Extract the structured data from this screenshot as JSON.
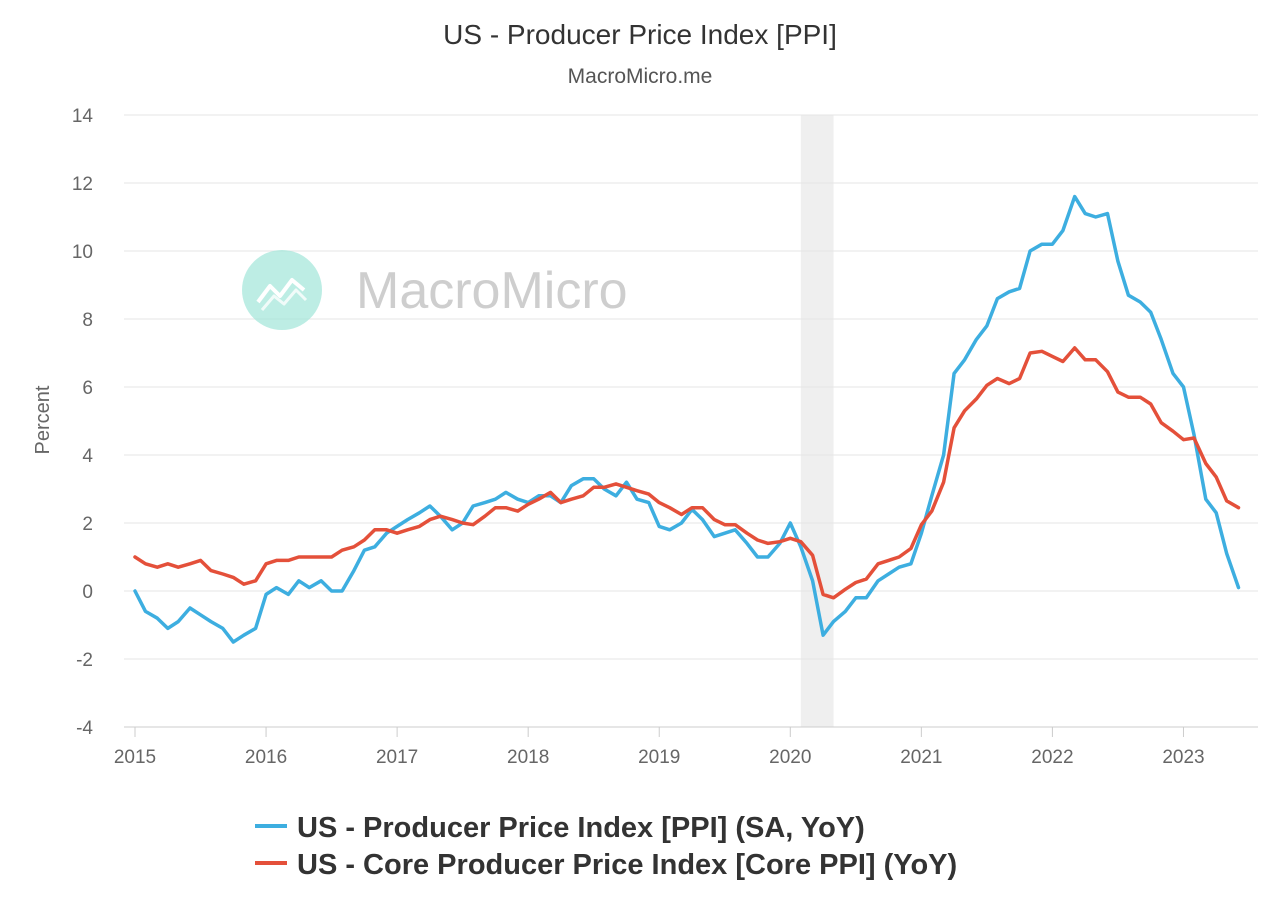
{
  "chart_data": {
    "type": "line",
    "title": "US - Producer Price Index [PPI]",
    "subtitle": "MacroMicro.me",
    "watermark": "MacroMicro",
    "xlabel": "",
    "ylabel": "Percent",
    "ylim": [
      -4,
      14
    ],
    "yticks": [
      -4,
      -2,
      0,
      2,
      4,
      6,
      8,
      10,
      12,
      14
    ],
    "ytick_labels": [
      "-4",
      "-2",
      "0",
      "2",
      "4",
      "6",
      "8",
      "10",
      "12",
      "14"
    ],
    "xlim": [
      2015.0,
      2023.5
    ],
    "xticks": [
      2015,
      2016,
      2017,
      2018,
      2019,
      2020,
      2021,
      2022,
      2023
    ],
    "xtick_labels": [
      "2015",
      "2016",
      "2017",
      "2018",
      "2019",
      "2020",
      "2021",
      "2022",
      "2023"
    ],
    "grid": true,
    "legend_position": "bottom",
    "recession_band": {
      "start": 2020.08,
      "end": 2020.33
    },
    "series": [
      {
        "name": "US - Producer Price Index [PPI] (SA, YoY)",
        "color": "#3daee0",
        "x": [
          2015.0,
          2015.08,
          2015.17,
          2015.25,
          2015.33,
          2015.42,
          2015.5,
          2015.58,
          2015.67,
          2015.75,
          2015.83,
          2015.92,
          2016.0,
          2016.08,
          2016.17,
          2016.25,
          2016.33,
          2016.42,
          2016.5,
          2016.58,
          2016.67,
          2016.75,
          2016.83,
          2016.92,
          2017.0,
          2017.08,
          2017.17,
          2017.25,
          2017.33,
          2017.42,
          2017.5,
          2017.58,
          2017.67,
          2017.75,
          2017.83,
          2017.92,
          2018.0,
          2018.08,
          2018.17,
          2018.25,
          2018.33,
          2018.42,
          2018.5,
          2018.58,
          2018.67,
          2018.75,
          2018.83,
          2018.92,
          2019.0,
          2019.08,
          2019.17,
          2019.25,
          2019.33,
          2019.42,
          2019.5,
          2019.58,
          2019.67,
          2019.75,
          2019.83,
          2019.92,
          2020.0,
          2020.08,
          2020.17,
          2020.25,
          2020.33,
          2020.42,
          2020.5,
          2020.58,
          2020.67,
          2020.75,
          2020.83,
          2020.92,
          2021.0,
          2021.08,
          2021.17,
          2021.25,
          2021.33,
          2021.42,
          2021.5,
          2021.58,
          2021.67,
          2021.75,
          2021.83,
          2021.92,
          2022.0,
          2022.08,
          2022.17,
          2022.25,
          2022.33,
          2022.42,
          2022.5,
          2022.58,
          2022.67,
          2022.75,
          2022.83,
          2022.92,
          2023.0,
          2023.08,
          2023.17,
          2023.25,
          2023.33,
          2023.42
        ],
        "values": [
          0.0,
          -0.6,
          -0.8,
          -1.1,
          -0.9,
          -0.5,
          -0.7,
          -0.9,
          -1.1,
          -1.5,
          -1.3,
          -1.1,
          -0.1,
          0.1,
          -0.1,
          0.3,
          0.1,
          0.3,
          0.0,
          0.0,
          0.6,
          1.2,
          1.3,
          1.7,
          1.9,
          2.1,
          2.3,
          2.5,
          2.2,
          1.8,
          2.0,
          2.5,
          2.6,
          2.7,
          2.9,
          2.7,
          2.6,
          2.8,
          2.8,
          2.6,
          3.1,
          3.3,
          3.3,
          3.0,
          2.8,
          3.2,
          2.7,
          2.6,
          1.9,
          1.8,
          2.0,
          2.4,
          2.1,
          1.6,
          1.7,
          1.8,
          1.4,
          1.0,
          1.0,
          1.4,
          2.0,
          1.3,
          0.3,
          -1.3,
          -0.9,
          -0.6,
          -0.2,
          -0.2,
          0.3,
          0.5,
          0.7,
          0.8,
          1.7,
          2.8,
          4.0,
          6.4,
          6.8,
          7.4,
          7.8,
          8.6,
          8.8,
          8.9,
          10.0,
          10.2,
          10.2,
          10.6,
          11.6,
          11.1,
          11.0,
          11.1,
          9.7,
          8.7,
          8.5,
          8.2,
          7.4,
          6.4,
          6.0,
          4.6,
          2.7,
          2.3,
          1.1,
          0.1
        ]
      },
      {
        "name": "US - Core Producer Price Index [Core PPI] (YoY)",
        "color": "#e4503a",
        "x": [
          2015.0,
          2015.08,
          2015.17,
          2015.25,
          2015.33,
          2015.42,
          2015.5,
          2015.58,
          2015.67,
          2015.75,
          2015.83,
          2015.92,
          2016.0,
          2016.08,
          2016.17,
          2016.25,
          2016.33,
          2016.42,
          2016.5,
          2016.58,
          2016.67,
          2016.75,
          2016.83,
          2016.92,
          2017.0,
          2017.08,
          2017.17,
          2017.25,
          2017.33,
          2017.42,
          2017.5,
          2017.58,
          2017.67,
          2017.75,
          2017.83,
          2017.92,
          2018.0,
          2018.08,
          2018.17,
          2018.25,
          2018.33,
          2018.42,
          2018.5,
          2018.58,
          2018.67,
          2018.75,
          2018.83,
          2018.92,
          2019.0,
          2019.08,
          2019.17,
          2019.25,
          2019.33,
          2019.42,
          2019.5,
          2019.58,
          2019.67,
          2019.75,
          2019.83,
          2019.92,
          2020.0,
          2020.08,
          2020.17,
          2020.25,
          2020.33,
          2020.42,
          2020.5,
          2020.58,
          2020.67,
          2020.75,
          2020.83,
          2020.92,
          2021.0,
          2021.08,
          2021.17,
          2021.25,
          2021.33,
          2021.42,
          2021.5,
          2021.58,
          2021.67,
          2021.75,
          2021.83,
          2021.92,
          2022.0,
          2022.08,
          2022.17,
          2022.25,
          2022.33,
          2022.42,
          2022.5,
          2022.58,
          2022.67,
          2022.75,
          2022.83,
          2022.92,
          2023.0,
          2023.08,
          2023.17,
          2023.25,
          2023.33,
          2023.42
        ],
        "values": [
          1.0,
          0.8,
          0.7,
          0.8,
          0.7,
          0.8,
          0.9,
          0.6,
          0.5,
          0.4,
          0.2,
          0.3,
          0.8,
          0.9,
          0.9,
          1.0,
          1.0,
          1.0,
          1.0,
          1.2,
          1.3,
          1.5,
          1.8,
          1.8,
          1.7,
          1.8,
          1.9,
          2.1,
          2.2,
          2.1,
          2.0,
          1.95,
          2.2,
          2.45,
          2.45,
          2.35,
          2.55,
          2.7,
          2.9,
          2.6,
          2.7,
          2.8,
          3.05,
          3.05,
          3.15,
          3.05,
          2.95,
          2.85,
          2.6,
          2.45,
          2.25,
          2.45,
          2.45,
          2.1,
          1.95,
          1.95,
          1.7,
          1.5,
          1.4,
          1.45,
          1.55,
          1.45,
          1.05,
          -0.1,
          -0.2,
          0.05,
          0.25,
          0.35,
          0.8,
          0.9,
          1.0,
          1.25,
          1.95,
          2.35,
          3.2,
          4.8,
          5.3,
          5.65,
          6.05,
          6.25,
          6.1,
          6.25,
          7.0,
          7.05,
          6.9,
          6.75,
          7.15,
          6.8,
          6.8,
          6.45,
          5.85,
          5.7,
          5.7,
          5.5,
          4.95,
          4.7,
          4.45,
          4.5,
          3.75,
          3.35,
          2.65,
          2.45
        ]
      }
    ]
  }
}
